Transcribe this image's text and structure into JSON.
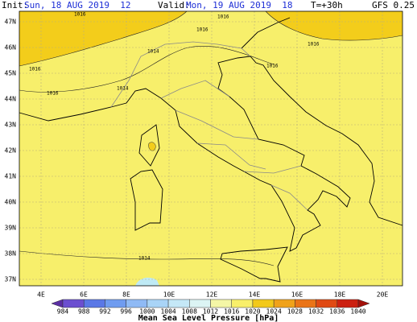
{
  "header": {
    "init_label": "Init:",
    "init_time": "Sun, 18 AUG 2019  12",
    "valid_label": "Valid:",
    "valid_time": "Mon, 19 AUG 2019  18",
    "lead_time": "T=+30h",
    "model": "GFS 0.25"
  },
  "map": {
    "latitude_labels": [
      "47N",
      "46N",
      "45N",
      "44N",
      "43N",
      "42N",
      "41N",
      "40N",
      "39N",
      "38N",
      "37N"
    ],
    "longitude_labels": [
      "4E",
      "6E",
      "8E",
      "10E",
      "12E",
      "14E",
      "16E",
      "18E",
      "20E"
    ],
    "contour_labels": [
      "1016",
      "1016",
      "1016",
      "1016",
      "1014",
      "1016",
      "1016",
      "1014",
      "1016",
      "1014"
    ]
  },
  "colorbar": {
    "title": "Mean Sea Level Pressure [hPa]",
    "levels": [
      984,
      988,
      992,
      996,
      1000,
      1004,
      1008,
      1012,
      1016,
      1020,
      1024,
      1028,
      1032,
      1036,
      1040
    ],
    "colors": [
      "#5a2ea3",
      "#6b4fd0",
      "#5a78e6",
      "#6f9cf0",
      "#8fbaf5",
      "#a9d4f7",
      "#c5e8f7",
      "#dcf4f4",
      "#f4f6a6",
      "#f8ef6a",
      "#f2c91a",
      "#f0a21a",
      "#ea7417",
      "#e04a13",
      "#cc2010",
      "#a3100a"
    ]
  }
}
